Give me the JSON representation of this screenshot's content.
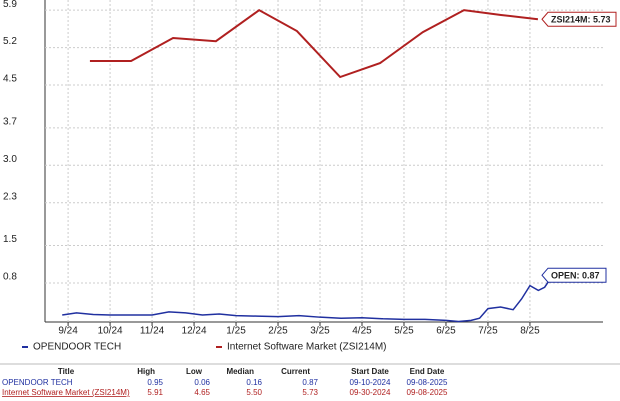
{
  "chart_data": {
    "type": "line",
    "xlim": [
      -0.55,
      12.74
    ],
    "xticks": [
      {
        "value": 0,
        "label": "9/24"
      },
      {
        "value": 1,
        "label": "10/24"
      },
      {
        "value": 2,
        "label": "11/24"
      },
      {
        "value": 3,
        "label": "12/24"
      },
      {
        "value": 4,
        "label": "1/25"
      },
      {
        "value": 5,
        "label": "2/25"
      },
      {
        "value": 6,
        "label": "3/25"
      },
      {
        "value": 7,
        "label": "4/25"
      },
      {
        "value": 8,
        "label": "5/25"
      },
      {
        "value": 9,
        "label": "6/25"
      },
      {
        "value": 10,
        "label": "7/25"
      },
      {
        "value": 11,
        "label": "8/25"
      }
    ],
    "ylim": [
      0.07,
      6.09
    ],
    "yticks": [
      0.8,
      1.5,
      2.3,
      {
        "value": 3,
        "label": "3.0"
      },
      3.7,
      4.5,
      5.2,
      5.9
    ],
    "grid": true,
    "series": [
      {
        "name": "OPENDOOR TECH",
        "color": "#2030a0",
        "x": [
          -0.14,
          0.2,
          0.6,
          1.0,
          1.5,
          2.0,
          2.4,
          2.8,
          3.2,
          3.6,
          4.0,
          4.5,
          5.0,
          5.5,
          6.0,
          6.5,
          7.0,
          7.5,
          8.0,
          8.5,
          9.0,
          9.3,
          9.6,
          9.8,
          10.0,
          10.3,
          10.6,
          10.8,
          11.0,
          11.2,
          11.35,
          11.48
        ],
        "values": [
          0.2,
          0.24,
          0.21,
          0.2,
          0.2,
          0.2,
          0.26,
          0.24,
          0.2,
          0.22,
          0.19,
          0.18,
          0.17,
          0.19,
          0.16,
          0.14,
          0.15,
          0.13,
          0.12,
          0.12,
          0.1,
          0.08,
          0.1,
          0.14,
          0.32,
          0.35,
          0.3,
          0.5,
          0.75,
          0.66,
          0.72,
          0.87
        ]
      },
      {
        "name": "Internet Software Market (ZSI214M)",
        "color": "#b02020",
        "x": [
          0.52,
          1.5,
          2.5,
          3.52,
          4.55,
          5.45,
          6.48,
          7.43,
          8.45,
          9.43,
          10.31,
          11.19
        ],
        "values": [
          4.95,
          4.95,
          5.38,
          5.32,
          5.9,
          5.51,
          4.65,
          4.91,
          5.49,
          5.9,
          5.81,
          5.73
        ]
      }
    ],
    "annotations": [
      "ZSI214M: 5.73",
      "OPEN: 0.87"
    ]
  },
  "table": {
    "headers": [
      "Title",
      "High",
      "Low",
      "Median",
      "Current",
      "Start Date",
      "End Date"
    ],
    "rows": [
      [
        "OPENDOOR TECH",
        "0.95",
        "0.06",
        "0.16",
        "0.87",
        "09-10-2024",
        "09-08-2025"
      ],
      [
        "Internet Software Market (ZSI214M)",
        "5.91",
        "4.65",
        "5.50",
        "5.73",
        "09-30-2024",
        "09-08-2025"
      ]
    ]
  }
}
